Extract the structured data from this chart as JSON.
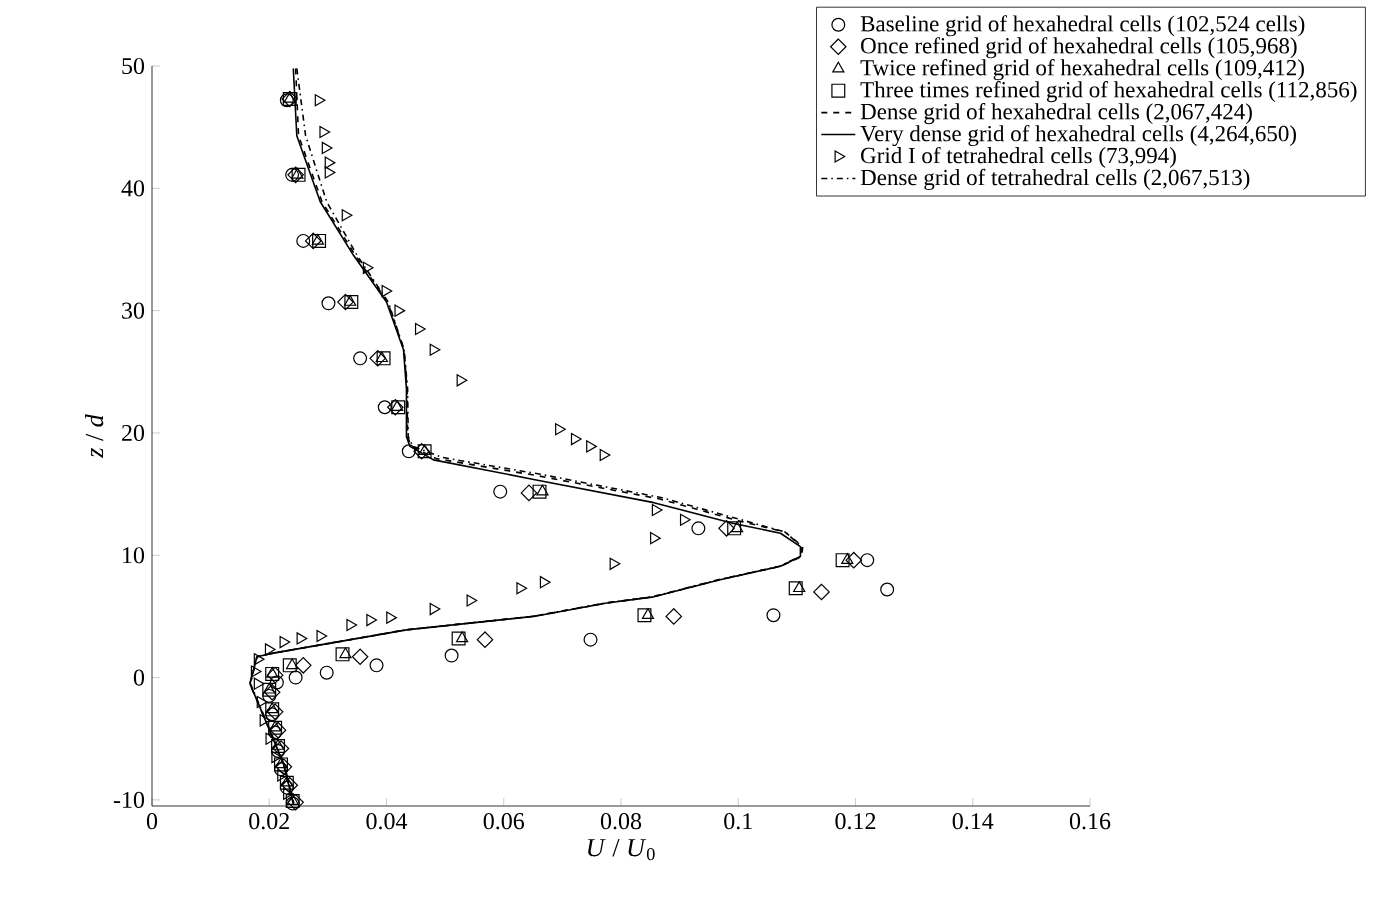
{
  "chart_data": {
    "type": "scatter",
    "xlabel": "*U* / *U*$_{0}$",
    "ylabel": "*z* / *d*",
    "xlim": [
      0,
      0.16
    ],
    "ylim": [
      -10.5,
      50
    ],
    "xticks": [
      0,
      0.02,
      0.04,
      0.06,
      0.08,
      0.1,
      0.12,
      0.14,
      0.16
    ],
    "yticks": [
      -10,
      0,
      10,
      20,
      30,
      40,
      50
    ],
    "legend": "top right",
    "grid": false,
    "series": [
      {
        "name": "Baseline grid of hexahedral cells (102,524 cells)",
        "type": "scatter",
        "marker": "circle",
        "color": "#000000",
        "x": [
          0.023,
          0.0239,
          0.0258,
          0.0301,
          0.0355,
          0.0397,
          0.0438,
          0.0594,
          0.0932,
          0.122,
          0.1254,
          0.106,
          0.0748,
          0.0511,
          0.0383,
          0.0298,
          0.0245,
          0.0213,
          0.02,
          0.0205,
          0.021,
          0.0215,
          0.022,
          0.023,
          0.024
        ],
        "values": [
          47.2,
          41.1,
          35.7,
          30.6,
          26.1,
          22.1,
          18.5,
          15.2,
          12.2,
          9.6,
          7.2,
          5.1,
          3.1,
          1.8,
          1.0,
          0.4,
          0.0,
          -0.4,
          -1.5,
          -3,
          -4.5,
          -6,
          -7.5,
          -9,
          -10.3
        ]
      },
      {
        "name": "Once refined grid of hexahedral cells (105,968)",
        "type": "scatter",
        "marker": "diamond",
        "color": "#000000",
        "x": [
          0.0235,
          0.0245,
          0.0275,
          0.033,
          0.0385,
          0.0415,
          0.046,
          0.0643,
          0.098,
          0.1197,
          0.1142,
          0.089,
          0.0568,
          0.0355,
          0.0258,
          0.021,
          0.0205,
          0.021,
          0.0215,
          0.022,
          0.0225,
          0.0235,
          0.0245
        ],
        "values": [
          47.3,
          41.1,
          35.7,
          30.7,
          26.1,
          22.1,
          18.5,
          15.1,
          12.2,
          9.6,
          7.0,
          5.0,
          3.1,
          1.7,
          1.0,
          0.2,
          -1.2,
          -2.8,
          -4.3,
          -5.8,
          -7.3,
          -8.8,
          -10.2
        ]
      },
      {
        "name": "Twice refined grid of hexahedral cells (109,412)",
        "type": "scatter",
        "marker": "triangle",
        "color": "#000000",
        "x": [
          0.0235,
          0.0248,
          0.0283,
          0.0338,
          0.0392,
          0.0418,
          0.0465,
          0.0666,
          0.0998,
          0.1186,
          0.1104,
          0.0846,
          0.0529,
          0.033,
          0.0239,
          0.0205,
          0.02,
          0.0205,
          0.021,
          0.0215,
          0.022,
          0.023,
          0.024
        ],
        "values": [
          47.3,
          41.1,
          35.7,
          30.7,
          26.1,
          22.1,
          18.5,
          15.2,
          12.2,
          9.6,
          7.3,
          5.1,
          3.2,
          1.9,
          1.0,
          0.3,
          -1.0,
          -2.6,
          -4.1,
          -5.6,
          -7.1,
          -8.6,
          -10.1
        ]
      },
      {
        "name": "Three times refined grid of hexahedral cells (112,856)",
        "type": "scatter",
        "marker": "square",
        "color": "#000000",
        "x": [
          0.0235,
          0.025,
          0.0285,
          0.034,
          0.0395,
          0.042,
          0.0465,
          0.0661,
          0.0993,
          0.1178,
          0.1098,
          0.084,
          0.0523,
          0.0325,
          0.0235,
          0.0205,
          0.02,
          0.0205,
          0.021,
          0.0215,
          0.022,
          0.023,
          0.024
        ],
        "values": [
          47.3,
          41.1,
          35.7,
          30.7,
          26.1,
          22.1,
          18.5,
          15.2,
          12.2,
          9.6,
          7.3,
          5.1,
          3.2,
          1.9,
          1.0,
          0.3,
          -1.0,
          -2.6,
          -4.1,
          -5.6,
          -7.1,
          -8.6,
          -10.1
        ]
      },
      {
        "name": "Dense grid of hexahedral cells (2,067,424)",
        "type": "line",
        "line_style": "dashed",
        "color": "#000000",
        "x": [
          0.0245,
          0.025,
          0.029,
          0.0347,
          0.0402,
          0.043,
          0.0435,
          0.0436,
          0.0442,
          0.0485,
          0.0658,
          0.0866,
          0.1002,
          0.108,
          0.111,
          0.1108,
          0.1072,
          0.0968,
          0.0855,
          0.0776,
          0.065,
          0.0434,
          0.0207,
          0.0179,
          0.0167,
          0.0196,
          0.0224,
          0.0241
        ],
        "values": [
          49.8,
          44.3,
          38.9,
          34.5,
          30.7,
          26.8,
          23.6,
          19.7,
          18.9,
          17.9,
          16.5,
          14.6,
          12.8,
          11.9,
          10.7,
          9.9,
          9.1,
          8.0,
          6.6,
          6.1,
          5.0,
          3.9,
          2.0,
          1.7,
          -0.5,
          -3.8,
          -7.0,
          -10.3
        ]
      },
      {
        "name": "Very dense grid of hexahedral cells (4,264,650)",
        "type": "line",
        "line_style": "solid",
        "color": "#000000",
        "x": [
          0.0241,
          0.0247,
          0.0287,
          0.0344,
          0.04,
          0.0429,
          0.0434,
          0.0434,
          0.044,
          0.048,
          0.0651,
          0.0856,
          0.0992,
          0.1072,
          0.1106,
          0.1106,
          0.1072,
          0.0969,
          0.0856,
          0.0776,
          0.0651,
          0.0434,
          0.0207,
          0.0179,
          0.0167,
          0.0196,
          0.0224,
          0.0241
        ],
        "values": [
          49.8,
          44.3,
          38.9,
          34.5,
          30.7,
          26.8,
          23.6,
          19.7,
          18.9,
          17.8,
          16.2,
          14.3,
          12.6,
          11.8,
          10.7,
          9.9,
          9.1,
          8.0,
          6.6,
          6.1,
          5.0,
          3.9,
          2.0,
          1.7,
          -0.5,
          -3.8,
          -7.0,
          -10.3
        ]
      },
      {
        "name": "Grid I of tetrahedral cells (73,994)",
        "type": "scatter",
        "marker": "triangle-right",
        "color": "#000000",
        "x": [
          0.0284,
          0.0292,
          0.0296,
          0.0301,
          0.0301,
          0.033,
          0.0366,
          0.0398,
          0.042,
          0.0455,
          0.048,
          0.0526,
          0.0694,
          0.0721,
          0.0747,
          0.077,
          0.0859,
          0.0907,
          0.0856,
          0.0787,
          0.0668,
          0.0628,
          0.0543,
          0.048,
          0.0406,
          0.0372,
          0.0338,
          0.0287,
          0.0253,
          0.0224,
          0.0199,
          0.018,
          0.0175,
          0.018,
          0.0185,
          0.019,
          0.02,
          0.021,
          0.022,
          0.023
        ],
        "values": [
          47.2,
          44.6,
          43.3,
          42.1,
          41.3,
          37.8,
          33.5,
          31.6,
          30.0,
          28.5,
          26.8,
          24.3,
          20.3,
          19.5,
          18.9,
          18.2,
          13.7,
          12.9,
          11.4,
          9.3,
          7.8,
          7.3,
          6.3,
          5.6,
          4.9,
          4.7,
          4.3,
          3.4,
          3.2,
          2.9,
          2.3,
          1.5,
          0.5,
          -0.5,
          -2,
          -3.5,
          -5,
          -6.5,
          -8,
          -9.5
        ]
      },
      {
        "name": "Dense grid of tetrahedral cells (2,067,513)",
        "type": "line",
        "line_style": "dashdot",
        "color": "#000000",
        "x": [
          0.0247,
          0.0262,
          0.0298,
          0.035,
          0.0403,
          0.043,
          0.0436,
          0.0437,
          0.0445,
          0.0495,
          0.0665,
          0.087,
          0.1005,
          0.108,
          0.1108,
          0.1106,
          0.107,
          0.0966,
          0.0853,
          0.0774,
          0.0648,
          0.0432,
          0.0207,
          0.0179,
          0.0168,
          0.0197,
          0.0225,
          0.0242
        ],
        "values": [
          49.8,
          44.3,
          38.9,
          34.5,
          30.7,
          26.8,
          23.6,
          19.7,
          18.9,
          18.0,
          16.6,
          14.7,
          12.9,
          11.9,
          10.7,
          9.9,
          9.1,
          8.0,
          6.6,
          6.1,
          5.0,
          3.9,
          2.0,
          1.7,
          -0.5,
          -3.8,
          -7.0,
          -10.3
        ]
      }
    ]
  }
}
